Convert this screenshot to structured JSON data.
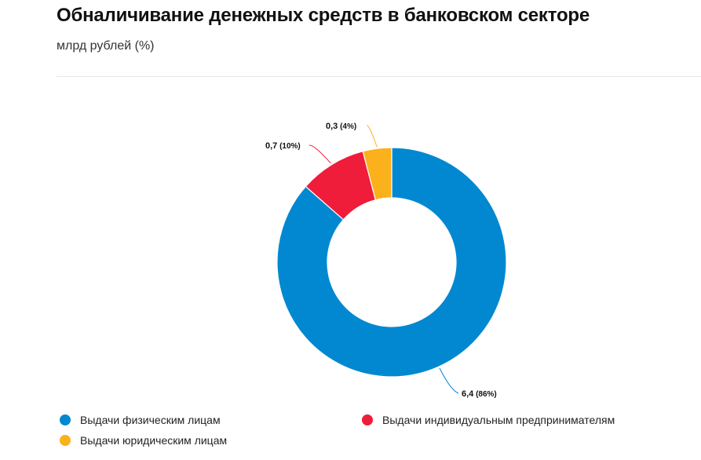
{
  "header": {
    "title": "Обналичивание денежных средств в банковском секторе",
    "subtitle": "млрд рублей (%)"
  },
  "chart_data": {
    "type": "pie",
    "donut": true,
    "categories": [
      "Выдачи физическим лицам",
      "Выдачи индивидуальным предпринимателям",
      "Выдачи юридическим лицам"
    ],
    "values": [
      6.4,
      0.7,
      0.3
    ],
    "percents": [
      86,
      10,
      4
    ],
    "data_labels": [
      "6,4",
      "0,7",
      "0,3"
    ],
    "percent_labels": [
      "(86%)",
      "(10%)",
      "(4%)"
    ],
    "colors": [
      "#0288d1",
      "#ef1c3a",
      "#fbb11c"
    ],
    "legend_position": "bottom"
  }
}
